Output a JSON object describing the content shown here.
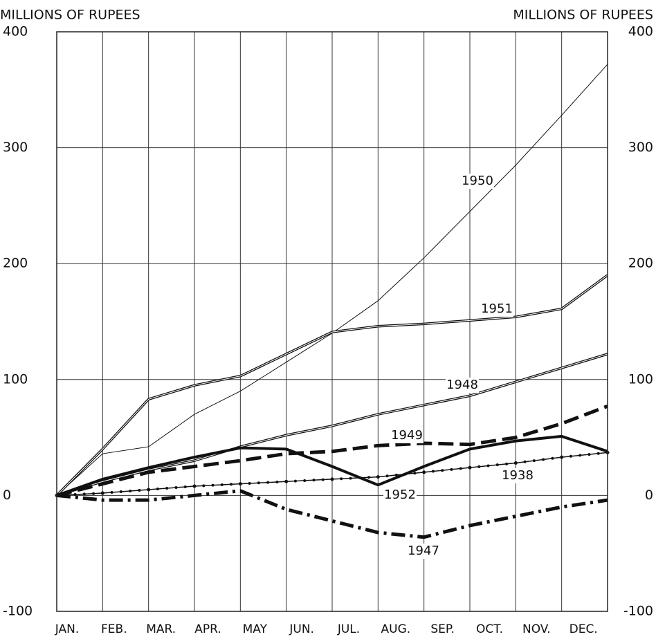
{
  "chart_data": {
    "type": "line",
    "ylabel": "MILLIONS OF RUPEES",
    "y2label": "MILLIONS OF RUPEES",
    "categories": [
      "JAN.",
      "FEB.",
      "MAR.",
      "APR.",
      "MAY",
      "JUN.",
      "JUL.",
      "AUG.",
      "SEP.",
      "OCT.",
      "NOV.",
      "DEC.",
      null
    ],
    "ylim": [
      -100,
      400
    ],
    "yticks": [
      -100,
      0,
      100,
      200,
      300,
      400
    ],
    "y2lim": [
      -100,
      400
    ],
    "y2ticks": [
      -100,
      0,
      100,
      200,
      300,
      400
    ],
    "grid": true,
    "series": [
      {
        "name": "1950",
        "color": "#111111",
        "line_style": "thin",
        "values": [
          0,
          36,
          42,
          70,
          90,
          115,
          140,
          168,
          205,
          245,
          285,
          328,
          372
        ]
      },
      {
        "name": "1951",
        "color": "#111111",
        "line_style": "double",
        "values": [
          0,
          40,
          83,
          95,
          103,
          122,
          141,
          146,
          148,
          151,
          154,
          161,
          190
        ]
      },
      {
        "name": "1948",
        "color": "#111111",
        "line_style": "double",
        "values": [
          0,
          12,
          22,
          30,
          42,
          52,
          60,
          70,
          78,
          86,
          98,
          110,
          122
        ]
      },
      {
        "name": "1949",
        "color": "#111111",
        "line_style": "dashed",
        "values": [
          0,
          10,
          20,
          25,
          30,
          36,
          38,
          43,
          45,
          44,
          50,
          62,
          77
        ]
      },
      {
        "name": "1952",
        "color": "#111111",
        "line_style": "thick",
        "values": [
          0,
          14,
          24,
          33,
          41,
          40,
          25,
          9,
          25,
          40,
          47,
          51,
          38
        ]
      },
      {
        "name": "1938",
        "color": "#111111",
        "line_style": "dotted",
        "values": [
          0,
          2,
          5,
          8,
          10,
          12,
          14,
          16,
          20,
          24,
          28,
          33,
          37
        ]
      },
      {
        "name": "1947",
        "color": "#111111",
        "line_style": "dashdot",
        "values": [
          0,
          -4,
          -4,
          0,
          4,
          -12,
          -22,
          -32,
          -36,
          -26,
          -18,
          -10,
          -4
        ]
      }
    ]
  }
}
